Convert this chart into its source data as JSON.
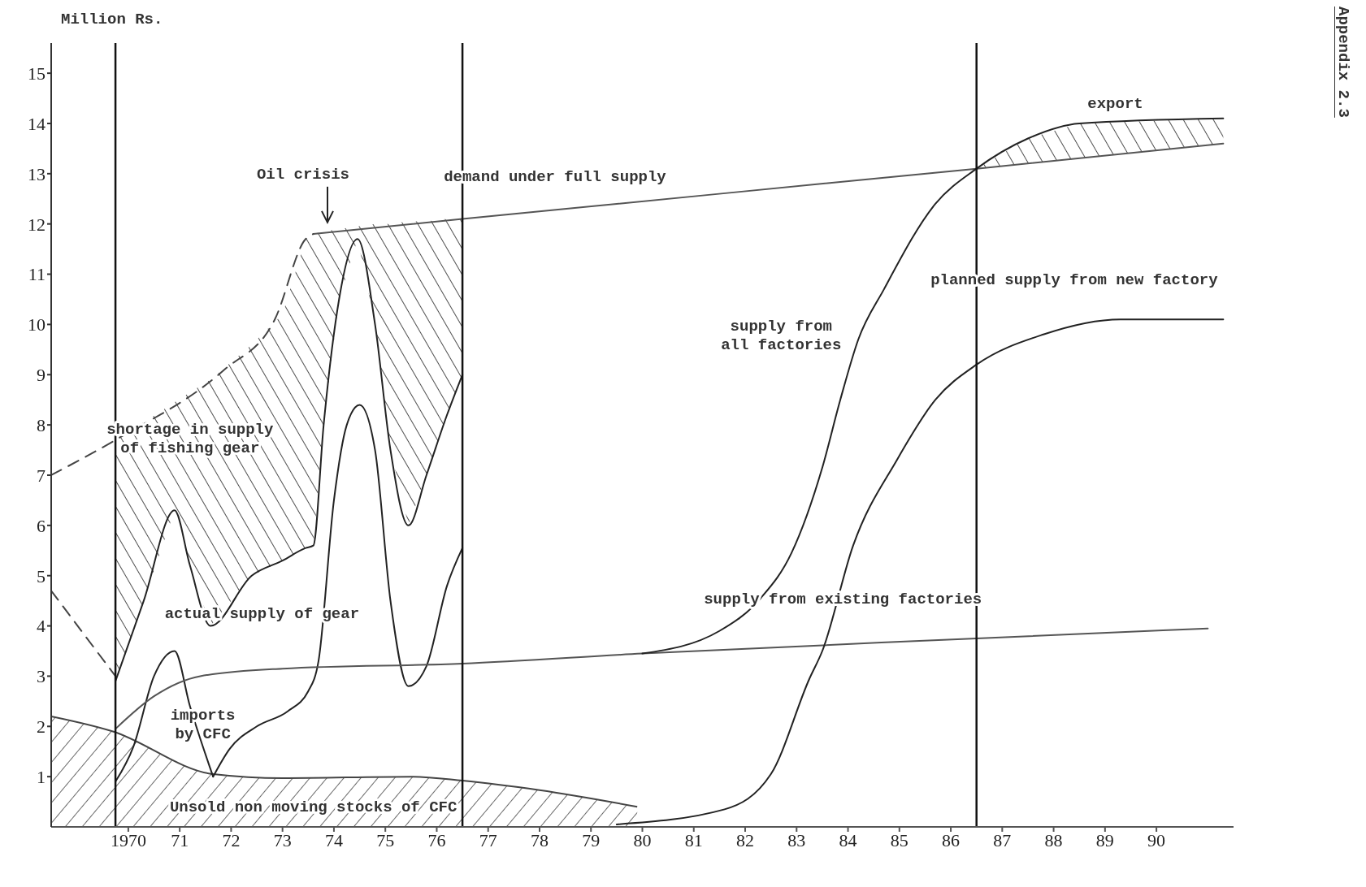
{
  "chart_data": {
    "type": "line",
    "ylabel": "Million Rs.",
    "xlim": [
      1968.5,
      1991.5
    ],
    "ylim": [
      0,
      15.6
    ],
    "xticks": [
      1970,
      {
        "value": 1971,
        "label": "71"
      },
      {
        "value": 1972,
        "label": "72"
      },
      {
        "value": 1973,
        "label": "73"
      },
      {
        "value": 1974,
        "label": "74"
      },
      {
        "value": 1975,
        "label": "75"
      },
      {
        "value": 1976,
        "label": "76"
      },
      {
        "value": 1977,
        "label": "77"
      },
      {
        "value": 1978,
        "label": "78"
      },
      {
        "value": 1979,
        "label": "79"
      },
      {
        "value": 1980,
        "label": "80"
      },
      {
        "value": 1981,
        "label": "81"
      },
      {
        "value": 1982,
        "label": "82"
      },
      {
        "value": 1983,
        "label": "83"
      },
      {
        "value": 1984,
        "label": "84"
      },
      {
        "value": 1985,
        "label": "85"
      },
      {
        "value": 1986,
        "label": "86"
      },
      {
        "value": 1987,
        "label": "87"
      },
      {
        "value": 1988,
        "label": "88"
      },
      {
        "value": 1989,
        "label": "89"
      },
      {
        "value": 1990,
        "label": "90"
      }
    ],
    "yticks": [
      1,
      2,
      3,
      4,
      5,
      6,
      7,
      8,
      9,
      10,
      11,
      12,
      13,
      14,
      15
    ],
    "grid": false,
    "legend": false,
    "series": [
      {
        "type": "area",
        "color": "#444444",
        "x": [
          1968.5,
          1969.7,
          1971.65,
          1973.0,
          1975.5,
          1976.5,
          1978.0,
          1979.9
        ],
        "values": [
          2.2,
          1.9,
          1.05,
          0.97,
          1.0,
          0.92,
          0.73,
          0.4
        ]
      },
      {
        "color": "#555555",
        "x": [
          1973.6,
          1976.5,
          1986.5,
          1991.3
        ],
        "values": [
          11.8,
          12.1,
          13.1,
          13.6
        ]
      },
      {
        "color": "#444444",
        "line_style": "dashed",
        "x": [
          1968.5,
          1969.75,
          1971.87,
          1972.85,
          1973.45,
          1973.6
        ],
        "values": [
          7.0,
          7.7,
          9.1,
          10.1,
          11.7,
          11.8
        ]
      },
      {
        "color": "#444444",
        "line_style": "dashed",
        "x": [
          1968.5,
          1969.75
        ],
        "values": [
          4.7,
          3.0
        ]
      },
      {
        "color": "#222222",
        "x": [
          1969.75,
          1970.3,
          1970.9,
          1971.2,
          1971.6,
          1972.4,
          1973.0,
          1973.45,
          1973.6,
          1973.8,
          1974.1,
          1974.46,
          1974.8,
          1975.1,
          1975.45,
          1975.8,
          1976.2,
          1976.5
        ],
        "values": [
          2.9,
          4.5,
          6.3,
          5.2,
          4.0,
          5.0,
          5.3,
          5.55,
          5.6,
          8.0,
          10.5,
          11.7,
          10.0,
          7.5,
          6.0,
          7.0,
          8.2,
          9.0
        ],
        "lower": [
          2.9,
          4.5,
          6.3,
          5.2,
          4.0,
          5.0,
          5.3,
          5.55,
          5.6,
          8.0,
          10.5,
          11.7,
          10.0,
          7.5,
          6.0,
          7.0,
          8.2,
          9.0
        ],
        "upper": [
          7.7,
          8.05,
          8.45,
          8.65,
          8.9,
          9.6,
          10.2,
          11.7,
          11.8,
          11.85,
          11.9,
          11.95,
          12.0,
          12.0,
          12.05,
          12.05,
          12.1,
          12.1
        ]
      },
      {
        "color": "#222222",
        "x": [
          1969.75,
          1970.1,
          1970.5,
          1970.9,
          1971.2,
          1971.65
        ],
        "values": [
          0.9,
          1.6,
          3.0,
          3.5,
          2.4,
          1.0
        ]
      },
      {
        "color": "#222222",
        "x": [
          1971.65,
          1971.97,
          1972.5,
          1973.1,
          1973.5,
          1973.7,
          1974.0,
          1974.25,
          1974.5,
          1974.8,
          1975.1,
          1975.45,
          1975.8,
          1976.2,
          1976.5
        ],
        "values": [
          1.0,
          1.55,
          2.0,
          2.3,
          2.7,
          3.3,
          6.5,
          8.0,
          8.4,
          7.5,
          4.5,
          2.8,
          3.2,
          4.8,
          5.55
        ]
      },
      {
        "color": "#555555",
        "x": [
          1969.75,
          1970.5,
          1971.4,
          1973.0,
          1976.5,
          1980.0,
          1986.5,
          1991.0
        ],
        "values": [
          1.95,
          2.6,
          3.0,
          3.15,
          3.25,
          3.45,
          3.75,
          3.95
        ]
      },
      {
        "color": "#222222",
        "x": [
          1980.0,
          1981.5,
          1982.3,
          1982.9,
          1983.5,
          1983.85,
          1984.2,
          1984.7,
          1985.7,
          1986.5,
          1987.5,
          1988.5,
          1991.3
        ],
        "values": [
          3.45,
          3.9,
          4.55,
          5.45,
          7.15,
          8.5,
          9.7,
          10.7,
          12.4,
          13.1,
          13.7,
          14.0,
          14.1
        ],
        "lower": [
          null,
          null,
          null,
          null,
          null,
          null,
          null,
          null,
          null,
          13.1,
          13.2,
          13.3,
          13.6
        ],
        "upper": [
          null,
          null,
          null,
          null,
          null,
          null,
          null,
          null,
          null,
          13.1,
          13.7,
          14.0,
          14.1
        ]
      },
      {
        "color": "#222222",
        "x": [
          1979.5,
          1981.6,
          1982.5,
          1983.25,
          1983.5,
          1984.1,
          1984.95,
          1985.7,
          1986.5,
          1987.8,
          1989.3,
          1991.3
        ],
        "values": [
          0.05,
          0.35,
          1.05,
          2.95,
          3.5,
          5.6,
          7.3,
          8.5,
          9.2,
          9.8,
          10.1,
          10.1
        ]
      }
    ],
    "ref_lines": [
      {
        "axis": "x",
        "value": 1969.75,
        "color": "#111111"
      },
      {
        "axis": "x",
        "value": 1976.5,
        "color": "#111111"
      },
      {
        "axis": "x",
        "value": 1986.5,
        "color": "#111111"
      }
    ],
    "annotations": [
      "Oil crisis",
      "demand under full supply",
      "shortage in supply\nof fishing gear",
      "actual supply of gear",
      "imports\nby CFC",
      "Unsold non moving stocks of CFC",
      "supply from\nall factories",
      "supply from existing factories",
      "planned supply from new factory",
      "export",
      "Appendix 2.3"
    ]
  }
}
